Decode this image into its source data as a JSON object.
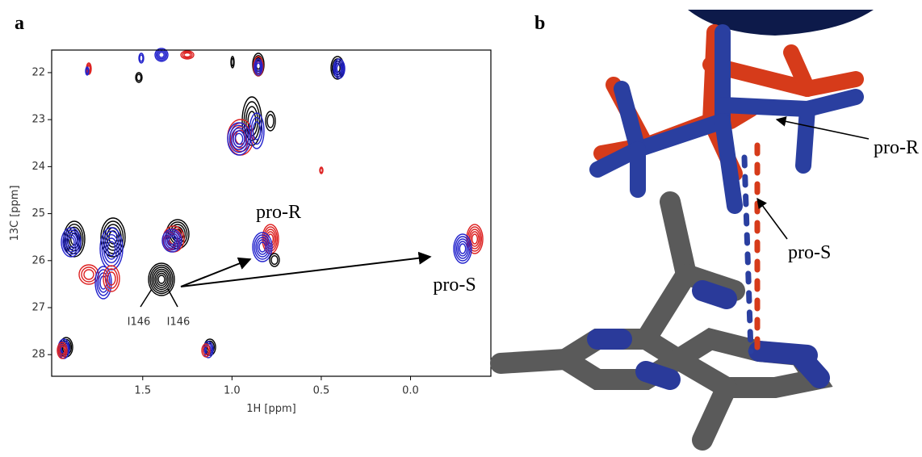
{
  "panel_a": {
    "label": "a",
    "xlabel": "1H [ppm]",
    "ylabel": "13C [ppm]",
    "xlim": [
      2.01,
      -0.45
    ],
    "ylim": [
      21.52,
      28.46
    ],
    "xticks": [
      {
        "value": 1.5,
        "label": "1.5"
      },
      {
        "value": 1,
        "label": "1.0"
      },
      {
        "value": 0.5,
        "label": "0.5"
      },
      {
        "value": 0,
        "label": "0.0"
      }
    ],
    "yticks": [
      22,
      23,
      24,
      25,
      26,
      27,
      28
    ],
    "annotations": {
      "pro_r": "pro-R",
      "pro_s": "pro-S",
      "residue_left": "I146",
      "residue_right": "I146"
    }
  },
  "panel_b": {
    "label": "b",
    "annotations": {
      "pro_r": "pro-R",
      "pro_s": "pro-S"
    }
  }
}
